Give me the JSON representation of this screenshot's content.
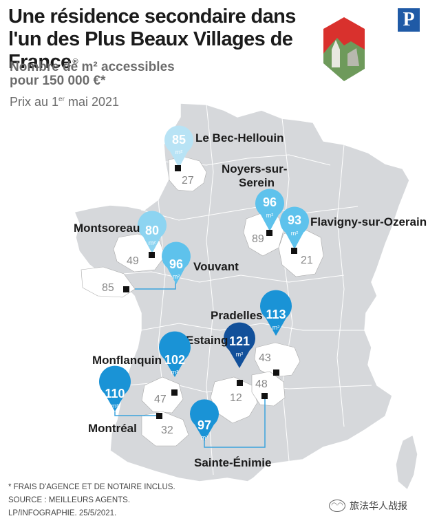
{
  "title": "Une résidence secondaire dans l'un des Plus Beaux Villages de France",
  "title_mark": "®",
  "subtitle_line1": "Nombre de m² accessibles",
  "subtitle_line2": "pour 150 000 €*",
  "date_prefix": "Prix au 1",
  "date_sup": "er",
  "date_suffix": " mai 2021",
  "logo_letter": "P",
  "unit": "m²",
  "villages": [
    {
      "name": "Le Bec-Hellouin",
      "m2": "85",
      "dept": "27",
      "pin_color": "#b8e3f5"
    },
    {
      "name": "Noyers-sur-",
      "name2": "Serein",
      "m2": "96",
      "dept": "89",
      "pin_color": "#5ec2ec"
    },
    {
      "name": "Flavigny-sur-Ozerain",
      "m2": "93",
      "dept": "21",
      "pin_color": "#5ec2ec"
    },
    {
      "name": "Montsoreau",
      "m2": "80",
      "dept": "49",
      "pin_color": "#8dd4f1"
    },
    {
      "name": "Vouvant",
      "m2": "96",
      "dept": "85",
      "pin_color": "#5ec2ec"
    },
    {
      "name": "Pradelles",
      "m2": "113",
      "dept": "43",
      "pin_color": "#1a93d6"
    },
    {
      "name": "Estaing",
      "m2": "121",
      "dept": "12",
      "pin_color": "#12509a"
    },
    {
      "name": "Monflanquin",
      "m2": "102",
      "dept": "47",
      "pin_color": "#1a93d6"
    },
    {
      "name": "Montréal",
      "m2": "110",
      "dept": "32",
      "pin_color": "#1a93d6"
    },
    {
      "name": "Sainte-Énimie",
      "m2": "97",
      "dept": "48",
      "pin_color": "#1a93d6"
    }
  ],
  "footer": [
    "* FRAIS D'AGENCE ET DE NOTAIRE INCLUS.",
    "SOURCE : MEILLEURS AGENTS.",
    "LP/INFOGRAPHIE.  25/5/2021."
  ],
  "watermark": "旅法华人战报"
}
